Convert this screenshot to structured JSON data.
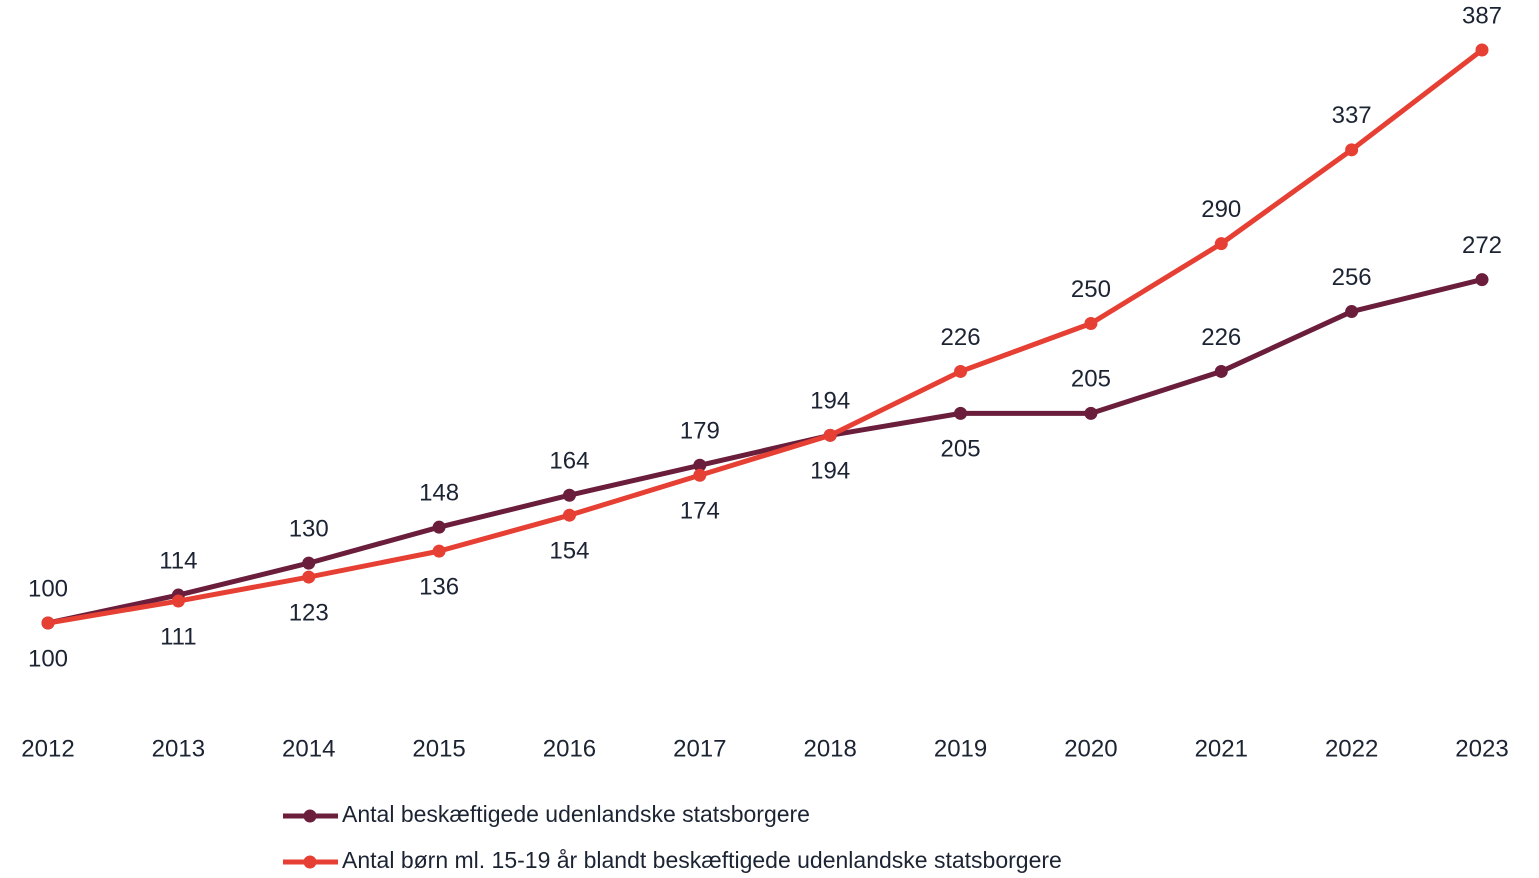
{
  "chart_data": {
    "type": "line",
    "categories": [
      "2012",
      "2013",
      "2014",
      "2015",
      "2016",
      "2017",
      "2018",
      "2019",
      "2020",
      "2021",
      "2022",
      "2023"
    ],
    "series": [
      {
        "name": "Antal beskæftigede udenlandske statsborgere",
        "color": "#6b1e3b",
        "values": [
          100,
          114,
          130,
          148,
          164,
          179,
          194,
          205,
          205,
          226,
          256,
          272
        ]
      },
      {
        "name": "Antal børn ml. 15-19 år blandt beskæftigede udenlandske statsborgere",
        "color": "#e63f33",
        "values": [
          100,
          111,
          123,
          136,
          154,
          174,
          194,
          226,
          250,
          290,
          337,
          387
        ]
      }
    ]
  }
}
